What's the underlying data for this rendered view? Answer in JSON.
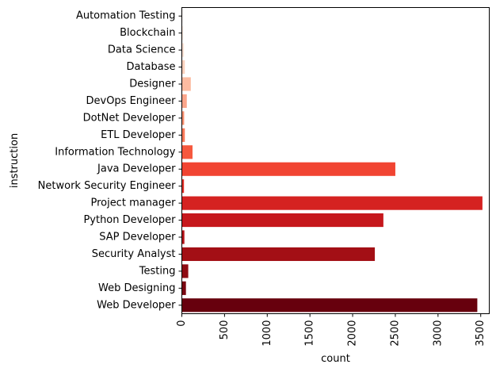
{
  "chart_data": {
    "type": "bar",
    "orientation": "horizontal",
    "title": "",
    "xlabel": "count",
    "ylabel": "instruction",
    "categories": [
      "Automation Testing",
      "Blockchain",
      "Data Science",
      "Database",
      "Designer",
      "DevOps Engineer",
      "DotNet Developer",
      "ETL Developer",
      "Information Technology",
      "Java Developer",
      "Network Security Engineer",
      "Project manager",
      "Python Developer",
      "SAP Developer",
      "Security Analyst",
      "Testing",
      "Web Designing",
      "Web Developer"
    ],
    "values": [
      8,
      17,
      25,
      35,
      105,
      58,
      27,
      35,
      125,
      2500,
      25,
      3520,
      2360,
      30,
      2260,
      75,
      48,
      3460
    ],
    "colors": [
      "#fff3ed",
      "#ffece3",
      "#fee2d5",
      "#fdd1bd",
      "#fcbba1",
      "#fca68b",
      "#fc9070",
      "#fb7a5a",
      "#f6583e",
      "#f14432",
      "#e32f27",
      "#d52221",
      "#c6171c",
      "#b61419",
      "#a30f15",
      "#8e0b13",
      "#7a0711",
      "#67000d"
    ],
    "xlim": [
      0,
      3600
    ],
    "xticks": [
      0,
      500,
      1000,
      1500,
      2000,
      2500,
      3000,
      3500
    ],
    "xtick_labels": [
      "0",
      "500",
      "1000",
      "1500",
      "2000",
      "2500",
      "3000",
      "3500"
    ],
    "xtick_rotation": 90,
    "grid": false,
    "legend": "none"
  }
}
